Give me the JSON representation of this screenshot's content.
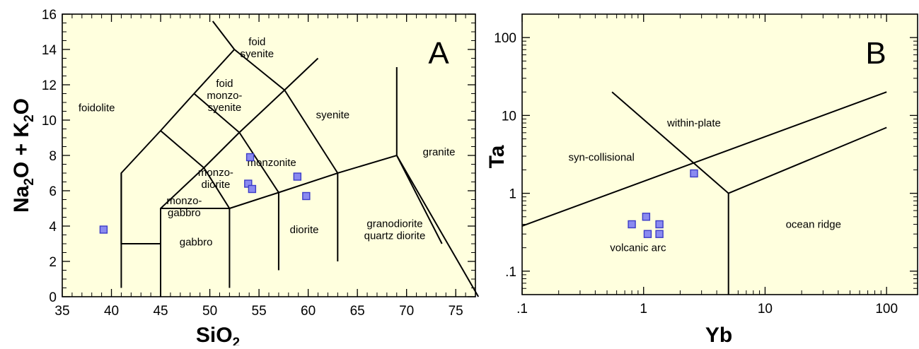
{
  "chart_data": [
    {
      "type": "scatter",
      "panel_letter": "A",
      "x_scale": "linear",
      "y_scale": "linear",
      "xlim": [
        35,
        77
      ],
      "ylim": [
        0,
        16
      ],
      "x_ticks": [
        35,
        40,
        45,
        50,
        55,
        60,
        65,
        70,
        75
      ],
      "y_ticks": [
        0,
        2,
        4,
        6,
        8,
        10,
        12,
        14,
        16
      ],
      "x_tick_labels": [
        "35",
        "40",
        "45",
        "50",
        "55",
        "60",
        "65",
        "70",
        "75"
      ],
      "y_tick_labels": [
        "0",
        "2",
        "4",
        "6",
        "8",
        "10",
        "12",
        "14",
        "16"
      ],
      "xlabel": {
        "main": "SiO",
        "sub": "2"
      },
      "ylabel": {
        "p1": "Na",
        "s1": "2",
        "p2": "O + K",
        "s2": "2",
        "p3": "O"
      },
      "fill_color": "#ffffde",
      "marker_color": "#8a8af0",
      "marker_edge": "#3c3cc8",
      "field_labels": [
        {
          "lines": [
            "foidolite"
          ],
          "x": 38.5,
          "y": 10.7
        },
        {
          "lines": [
            "foid",
            "syenite"
          ],
          "x": 54.8,
          "y": 14.1
        },
        {
          "lines": [
            "foid",
            "monzo-",
            "syenite"
          ],
          "x": 51.5,
          "y": 11.4
        },
        {
          "lines": [
            "syenite"
          ],
          "x": 62.5,
          "y": 10.3
        },
        {
          "lines": [
            "monzonite"
          ],
          "x": 56.3,
          "y": 7.6
        },
        {
          "lines": [
            "monzo-",
            "diorite"
          ],
          "x": 50.6,
          "y": 6.7
        },
        {
          "lines": [
            "monzo-",
            "gabbro"
          ],
          "x": 47.4,
          "y": 5.1
        },
        {
          "lines": [
            "granite"
          ],
          "x": 73.3,
          "y": 8.2
        },
        {
          "lines": [
            "diorite"
          ],
          "x": 59.6,
          "y": 3.8
        },
        {
          "lines": [
            "granodiorite",
            "quartz diorite"
          ],
          "x": 68.8,
          "y": 3.8
        },
        {
          "lines": [
            "gabbro"
          ],
          "x": 48.6,
          "y": 3.1
        }
      ],
      "boundaries": [
        [
          [
            41,
            0.5
          ],
          [
            41,
            7
          ],
          [
            45,
            9.4
          ],
          [
            48.4,
            11.5
          ],
          [
            52.5,
            14
          ],
          [
            57.6,
            11.7
          ],
          [
            63,
            7
          ],
          [
            69,
            8
          ],
          [
            77.3,
            0
          ]
        ],
        [
          [
            41,
            7
          ],
          [
            41,
            3
          ],
          [
            45,
            3
          ],
          [
            45,
            5
          ],
          [
            49.4,
            7.3
          ],
          [
            53,
            9.3
          ],
          [
            57.6,
            11.7
          ]
        ],
        [
          [
            45,
            9.4
          ],
          [
            49.4,
            7.3
          ],
          [
            52,
            5
          ],
          [
            57,
            5.9
          ],
          [
            63,
            7
          ],
          [
            63,
            2
          ]
        ],
        [
          [
            48.4,
            11.5
          ],
          [
            53,
            9.3
          ],
          [
            57,
            5.9
          ],
          [
            57,
            1.5
          ]
        ],
        [
          [
            52.5,
            14
          ],
          [
            50.3,
            15.6
          ]
        ],
        [
          [
            57.6,
            11.7
          ],
          [
            61,
            13.5
          ]
        ],
        [
          [
            45,
            5
          ],
          [
            45,
            0
          ]
        ],
        [
          [
            45,
            5
          ],
          [
            52,
            5
          ],
          [
            52,
            0.5
          ]
        ],
        [
          [
            69,
            8
          ],
          [
            69,
            13
          ]
        ],
        [
          [
            69,
            8
          ],
          [
            73.6,
            3
          ]
        ]
      ],
      "points": [
        {
          "x": 39.2,
          "y": 3.8
        },
        {
          "x": 54.1,
          "y": 7.9
        },
        {
          "x": 53.9,
          "y": 6.4
        },
        {
          "x": 54.3,
          "y": 6.1
        },
        {
          "x": 58.9,
          "y": 6.8
        },
        {
          "x": 59.8,
          "y": 5.7
        }
      ]
    },
    {
      "type": "scatter",
      "panel_letter": "B",
      "x_scale": "log",
      "y_scale": "log",
      "xlim": [
        0.1,
        180
      ],
      "ylim": [
        0.05,
        200
      ],
      "x_ticks": [
        0.1,
        1,
        10,
        100
      ],
      "y_ticks": [
        0.1,
        1,
        10,
        100
      ],
      "x_tick_labels": [
        ".1",
        "1",
        "10",
        "100"
      ],
      "y_tick_labels": [
        ".1",
        "1",
        "10",
        "100"
      ],
      "xlabel": {
        "main": "Yb"
      },
      "ylabel": {
        "main": "Ta"
      },
      "fill_color": "#ffffde",
      "marker_color": "#8a8af0",
      "marker_edge": "#3c3cc8",
      "field_labels": [
        {
          "lines": [
            "within-plate"
          ],
          "x": 2.6,
          "y": 8
        },
        {
          "lines": [
            "syn-collisional"
          ],
          "x": 0.45,
          "y": 2.9
        },
        {
          "lines": [
            "volcanic arc"
          ],
          "x": 0.9,
          "y": 0.2
        },
        {
          "lines": [
            "ocean ridge"
          ],
          "x": 25,
          "y": 0.4
        }
      ],
      "boundaries": [
        [
          [
            0.1,
            0.38
          ],
          [
            100,
            20
          ]
        ],
        [
          [
            0.55,
            20
          ],
          [
            5,
            1
          ],
          [
            100,
            7
          ]
        ],
        [
          [
            5,
            1
          ],
          [
            5,
            0.05
          ]
        ]
      ],
      "points": [
        {
          "x": 0.8,
          "y": 0.4
        },
        {
          "x": 1.05,
          "y": 0.5
        },
        {
          "x": 1.08,
          "y": 0.3
        },
        {
          "x": 1.35,
          "y": 0.4
        },
        {
          "x": 1.35,
          "y": 0.3
        },
        {
          "x": 2.6,
          "y": 1.8
        }
      ]
    }
  ]
}
